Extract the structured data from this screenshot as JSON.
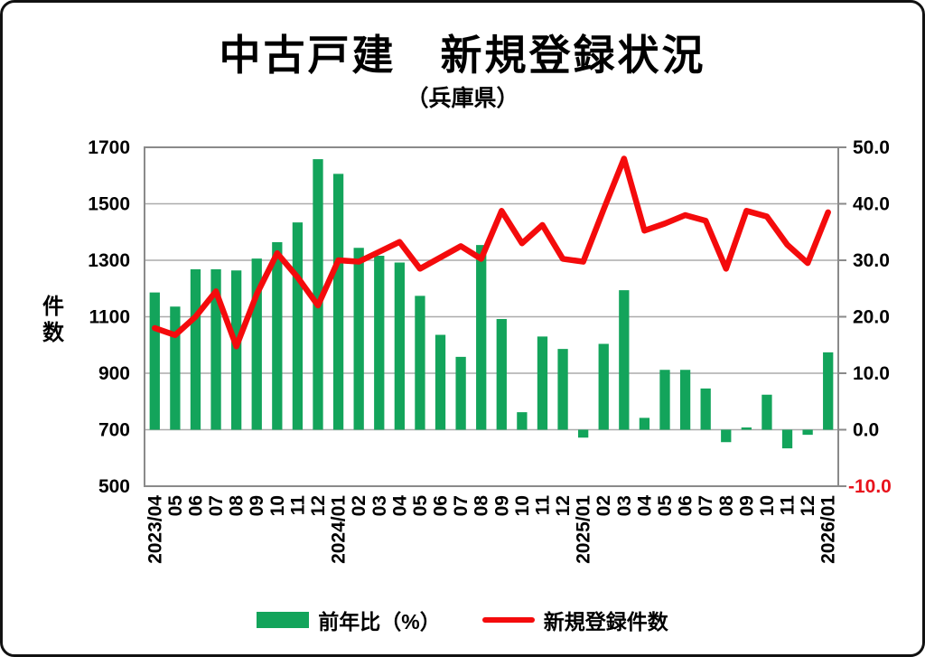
{
  "frame": {
    "title": "中古戸建　新規登録状況",
    "subtitle": "（兵庫県）"
  },
  "legend": {
    "bar_label": "前年比（%）",
    "line_label": "新規登録件数"
  },
  "colors": {
    "bar_green": "#13a45b",
    "line_red": "#f40b0c",
    "negative_tick_red": "#e8131c",
    "gridline": "#ababab",
    "plot_border": "#8a8a8a",
    "text": "#000000"
  },
  "chart_data": {
    "type": "combo",
    "categories": [
      "2023/04",
      "05",
      "06",
      "07",
      "08",
      "09",
      "10",
      "11",
      "12",
      "2024/01",
      "02",
      "03",
      "04",
      "05",
      "06",
      "07",
      "08",
      "09",
      "10",
      "11",
      "12",
      "2025/01",
      "02",
      "03",
      "04",
      "05",
      "06",
      "07",
      "08",
      "09",
      "10",
      "11",
      "12",
      "2026/01"
    ],
    "series": [
      {
        "name": "前年比（%）",
        "type": "bar",
        "axis": "right",
        "color": "#13a45b",
        "values": [
          24.3,
          21.8,
          28.4,
          28.4,
          28.2,
          30.3,
          33.2,
          36.7,
          47.9,
          45.3,
          32.2,
          30.8,
          29.6,
          23.7,
          16.8,
          12.9,
          32.7,
          19.6,
          3.1,
          16.5,
          14.3,
          -1.4,
          15.2,
          24.7,
          2.1,
          10.6,
          10.6,
          7.3,
          -2.2,
          0.4,
          6.2,
          -3.3,
          -0.9,
          13.7
        ]
      },
      {
        "name": "新規登録件数",
        "type": "line",
        "axis": "left",
        "color": "#f40b0c",
        "values": [
          1060,
          1035,
          1100,
          1190,
          995,
          1180,
          1325,
          1240,
          1140,
          1300,
          1295,
          1330,
          1365,
          1270,
          1310,
          1350,
          1305,
          1475,
          1360,
          1425,
          1305,
          1295,
          1480,
          1660,
          1405,
          1430,
          1460,
          1440,
          1270,
          1475,
          1455,
          1355,
          1290,
          1470
        ]
      }
    ],
    "left_axis": {
      "title": "件数",
      "min": 500,
      "max": 1700,
      "step": 200,
      "ticks": [
        "1700",
        "1500",
        "1300",
        "1100",
        "900",
        "700",
        "500"
      ]
    },
    "right_axis": {
      "min": -10,
      "max": 50,
      "step": 10,
      "ticks": [
        "50.0",
        "40.0",
        "30.0",
        "20.0",
        "10.0",
        "0.0",
        "-10.0"
      ],
      "negative_tick_color": "#e8131c"
    },
    "grid": true,
    "legend_position": "bottom",
    "bar_baseline_right_value": 0.0
  }
}
